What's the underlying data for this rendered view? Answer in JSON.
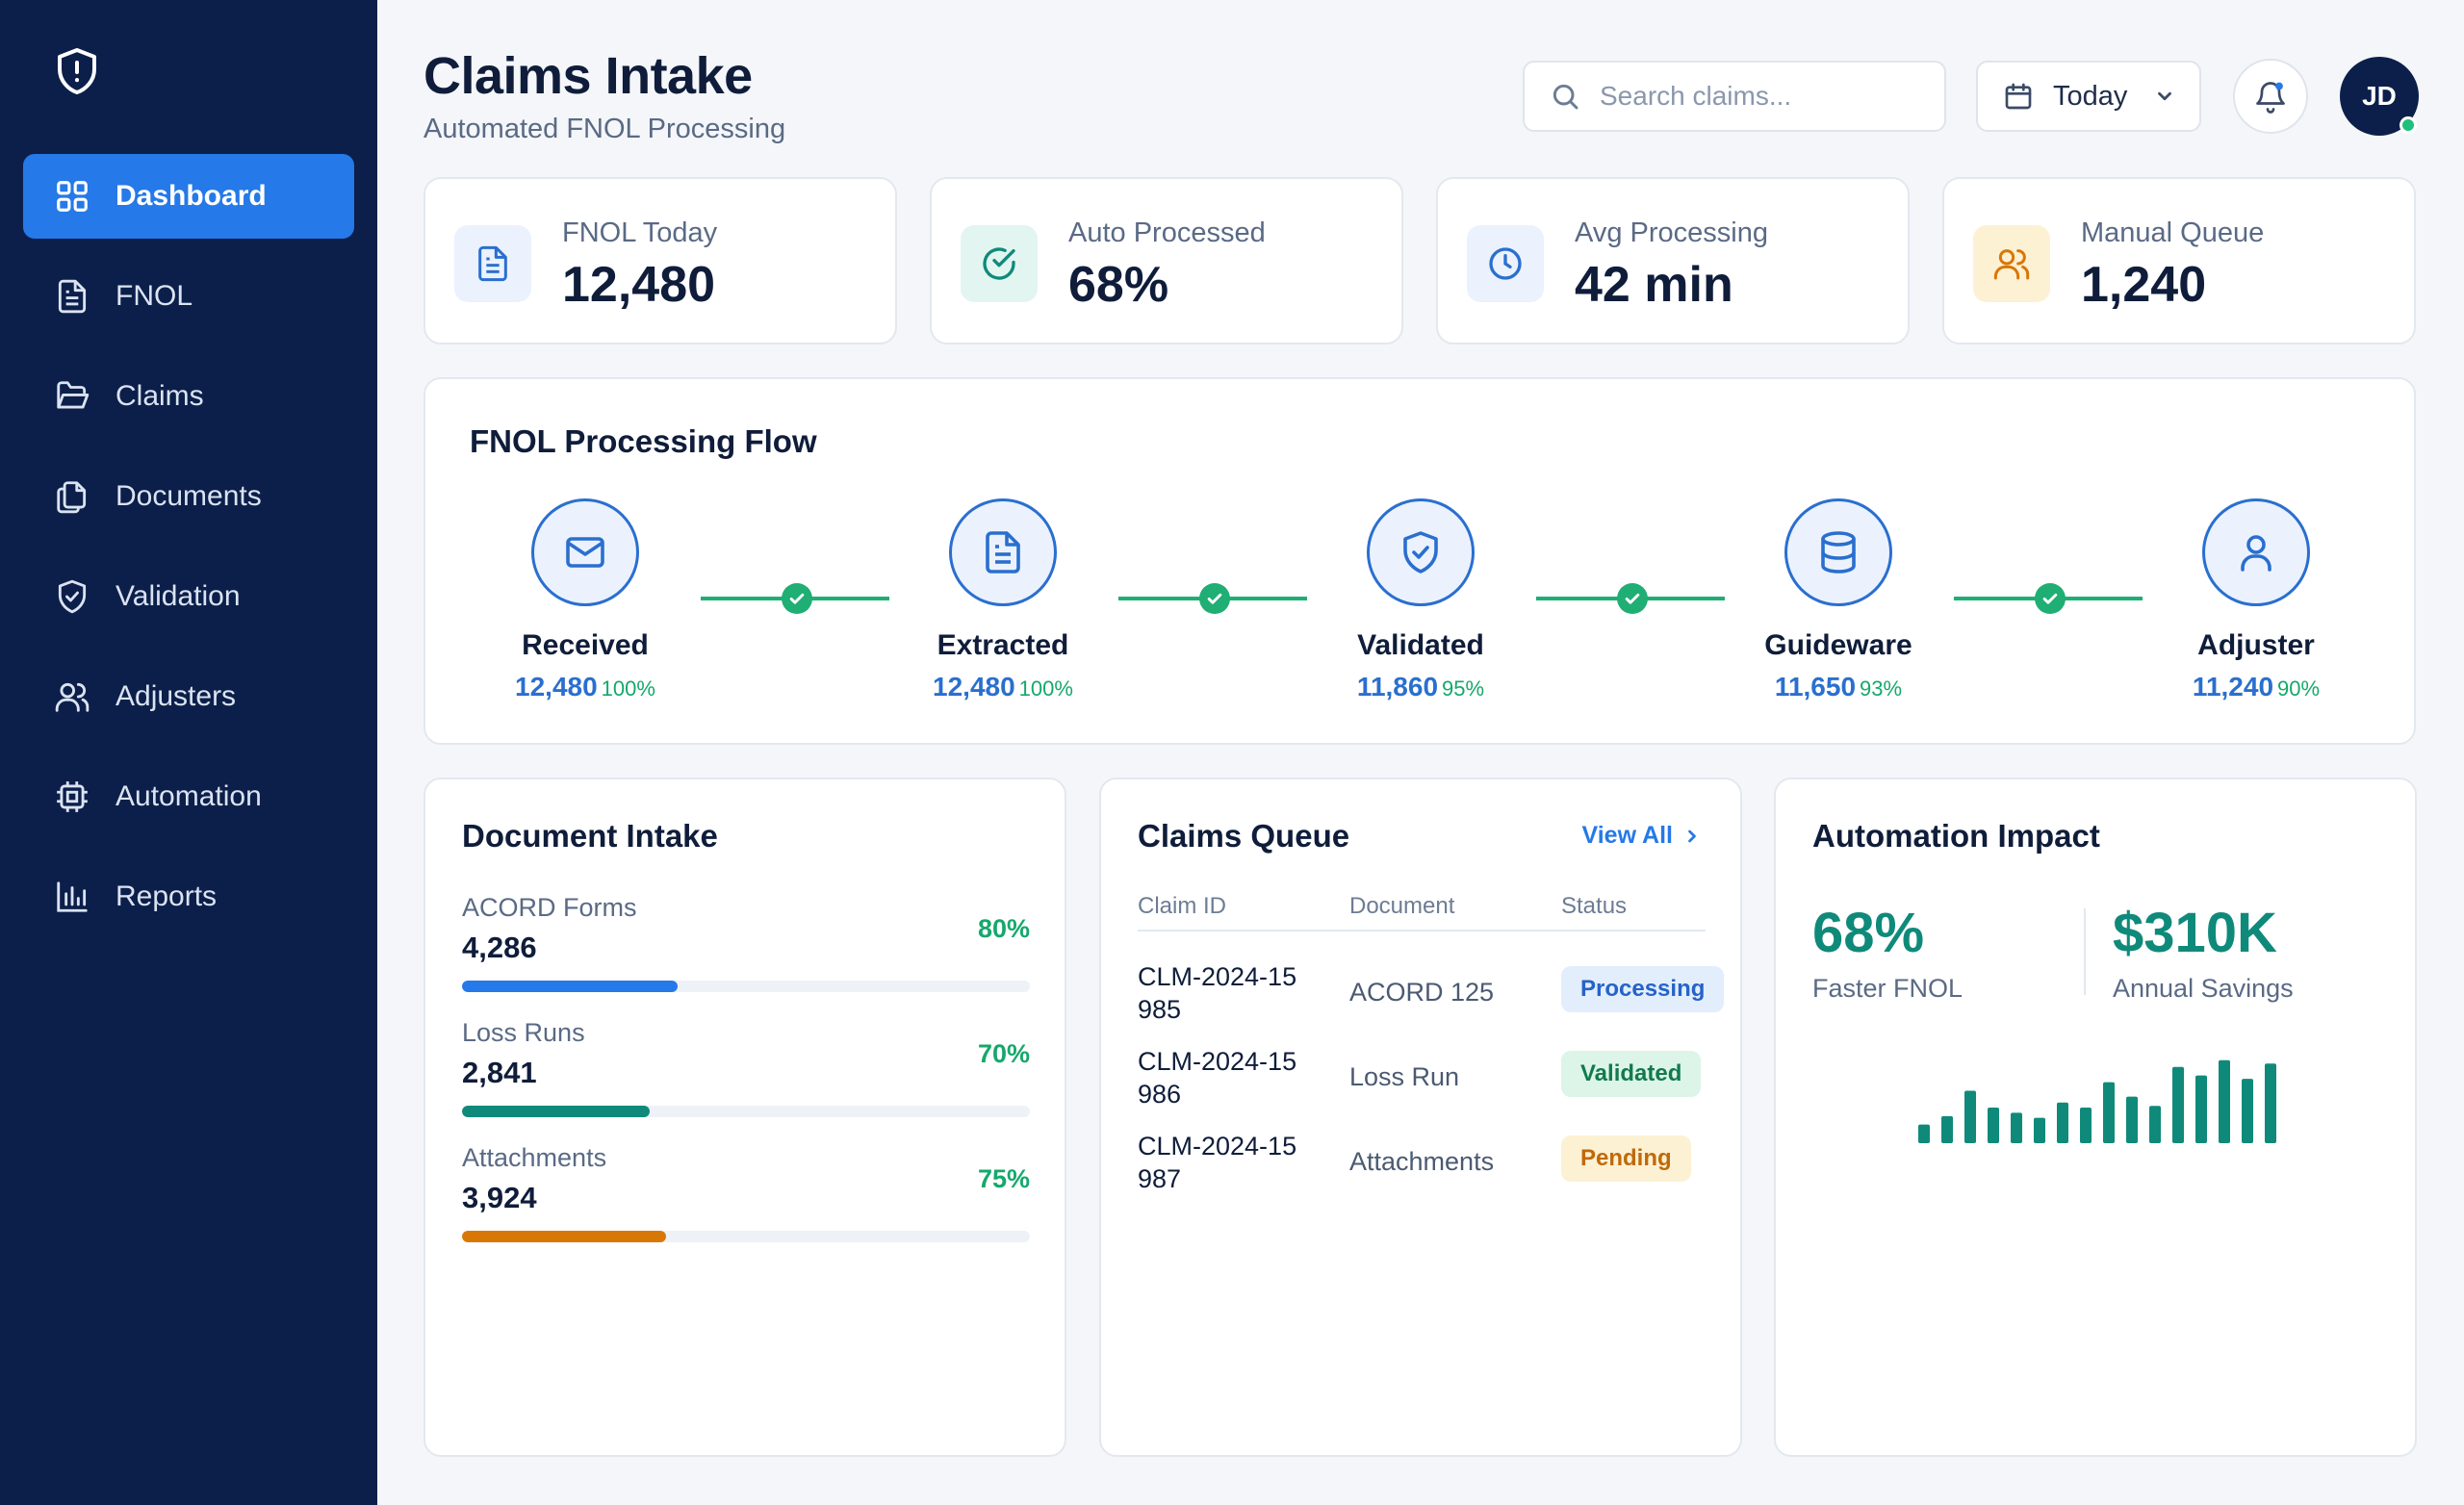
{
  "colors": {
    "sidebar_bg": "#0c1f4a",
    "accent": "#2579e8",
    "success": "#15a86c",
    "teal": "#0f8a7a",
    "warning": "#d97706"
  },
  "sidebar": {
    "logo_icon": "shield-alert-icon",
    "items": [
      {
        "label": "Dashboard",
        "icon": "grid-icon",
        "active": true
      },
      {
        "label": "FNOL",
        "icon": "file-text-icon"
      },
      {
        "label": "Claims",
        "icon": "folder-open-icon"
      },
      {
        "label": "Documents",
        "icon": "files-icon"
      },
      {
        "label": "Validation",
        "icon": "shield-check-icon"
      },
      {
        "label": "Adjusters",
        "icon": "users-icon"
      },
      {
        "label": "Automation",
        "icon": "cpu-icon"
      },
      {
        "label": "Reports",
        "icon": "bar-chart-icon"
      }
    ]
  },
  "header": {
    "title": "Claims Intake",
    "subtitle": "Automated FNOL Processing",
    "search_placeholder": "Search claims...",
    "date_filter": "Today",
    "avatar_initials": "JD"
  },
  "stats": [
    {
      "label": "FNOL Today",
      "value": "12,480",
      "icon": "file-text-icon"
    },
    {
      "label": "Auto Processed",
      "value": "68%",
      "icon": "check-circle-icon"
    },
    {
      "label": "Avg Processing",
      "value": "42 min",
      "icon": "clock-icon"
    },
    {
      "label": "Manual Queue",
      "value": "1,240",
      "icon": "users-icon"
    }
  ],
  "flow": {
    "title": "FNOL Processing Flow",
    "steps": [
      {
        "name": "Received",
        "count": "12,480",
        "pct": "100%",
        "icon": "mail-icon"
      },
      {
        "name": "Extracted",
        "count": "12,480",
        "pct": "100%",
        "icon": "file-text-icon"
      },
      {
        "name": "Validated",
        "count": "11,860",
        "pct": "95%",
        "icon": "shield-check-icon"
      },
      {
        "name": "Guideware",
        "count": "11,650",
        "pct": "93%",
        "icon": "database-icon"
      },
      {
        "name": "Adjuster",
        "count": "11,240",
        "pct": "90%",
        "icon": "user-icon"
      }
    ]
  },
  "document_intake": {
    "title": "Document Intake",
    "rows": [
      {
        "label": "ACORD Forms",
        "value": "4,286",
        "pct": "80%",
        "fill": 0.38,
        "color": "#2579e8"
      },
      {
        "label": "Loss Runs",
        "value": "2,841",
        "pct": "70%",
        "fill": 0.33,
        "color": "#0f8a7a"
      },
      {
        "label": "Attachments",
        "value": "3,924",
        "pct": "75%",
        "fill": 0.36,
        "color": "#d97706"
      }
    ]
  },
  "claims_queue": {
    "title": "Claims Queue",
    "view_all": "View All",
    "columns": [
      "Claim ID",
      "Document",
      "Status"
    ],
    "rows": [
      {
        "claim_id": "CLM-2024-15 985",
        "document": "ACORD 125",
        "status": "Processing",
        "status_bg": "#e3eefc",
        "status_fg": "#2563c9"
      },
      {
        "claim_id": "CLM-2024-15 986",
        "document": "Loss Run",
        "status": "Validated",
        "status_bg": "#dcf5e8",
        "status_fg": "#127a4f"
      },
      {
        "claim_id": "CLM-2024-15 987",
        "document": "Attachments",
        "status": "Pending",
        "status_bg": "#fdf1d4",
        "status_fg": "#c06a08"
      }
    ]
  },
  "automation_impact": {
    "title": "Automation Impact",
    "metric1_value": "68%",
    "metric1_label": "Faster FNOL",
    "metric2_value": "$310K",
    "metric2_label": "Annual Savings",
    "sparkline": [
      0.22,
      0.32,
      0.62,
      0.42,
      0.36,
      0.3,
      0.48,
      0.42,
      0.72,
      0.55,
      0.44,
      0.9,
      0.8,
      0.98,
      0.76,
      0.94
    ]
  }
}
